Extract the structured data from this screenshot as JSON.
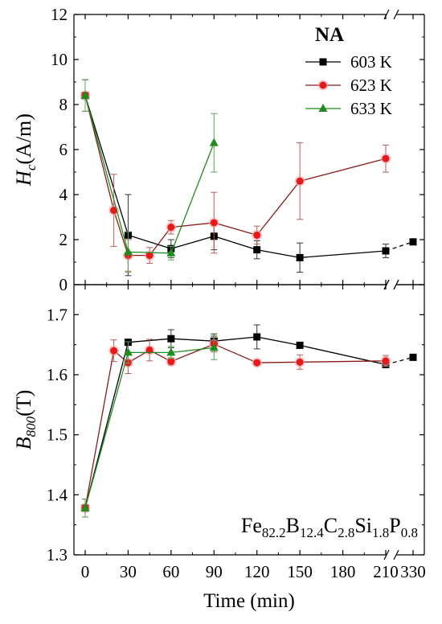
{
  "chart_data": [
    {
      "type": "line",
      "panel": "top",
      "ylabel": "Hc(A/m)",
      "ylabel_parts": {
        "main": "H",
        "sub": "c",
        "rest": "(A/m)"
      },
      "ylim": [
        0,
        12
      ],
      "yticks": [
        0,
        2,
        4,
        6,
        8,
        10,
        12
      ],
      "xticks": [
        "0",
        "30",
        "60",
        "90",
        "120",
        "150",
        "180",
        "210",
        "330"
      ],
      "x_break": "between 210 and 330",
      "legend_title": "NA",
      "legend_position": "top-right",
      "series": [
        {
          "name": "603 K",
          "color": "#000000",
          "marker": "square",
          "x": [
            0,
            30,
            60,
            90,
            120,
            150,
            210,
            330
          ],
          "y": [
            8.4,
            2.2,
            1.6,
            2.15,
            1.55,
            1.2,
            1.5,
            1.9
          ],
          "err": [
            0.7,
            1.8,
            0.4,
            0.6,
            0.4,
            0.65,
            0.3,
            0
          ]
        },
        {
          "name": "623 K",
          "color": "#e8191b",
          "line_color": "#8b1a1a",
          "marker": "circle",
          "x": [
            0,
            20,
            30,
            45,
            60,
            90,
            120,
            150,
            210
          ],
          "y": [
            8.4,
            3.3,
            1.3,
            1.3,
            2.55,
            2.75,
            2.2,
            4.6,
            5.6
          ],
          "err": [
            0.7,
            1.6,
            0.7,
            0.35,
            0.3,
            1.35,
            0.4,
            1.7,
            0.6
          ]
        },
        {
          "name": "633 K",
          "color": "#1e8c1e",
          "marker": "triangle",
          "x": [
            0,
            30,
            60,
            90
          ],
          "y": [
            8.4,
            1.45,
            1.4,
            6.3
          ],
          "err": [
            0.7,
            0.9,
            0.3,
            1.3
          ]
        }
      ]
    },
    {
      "type": "line",
      "panel": "bottom",
      "xlabel": "Time (min)",
      "ylabel": "B800(T)",
      "ylabel_parts": {
        "main": "B",
        "sub": "800",
        "rest": "(T)"
      },
      "ylim": [
        1.3,
        1.75
      ],
      "yticks": [
        1.3,
        1.4,
        1.5,
        1.6,
        1.7
      ],
      "xticks": [
        "0",
        "30",
        "60",
        "90",
        "120",
        "150",
        "180",
        "210",
        "330"
      ],
      "annotation": {
        "parts": [
          {
            "t": "Fe",
            "sub": false
          },
          {
            "t": "82.2",
            "sub": true
          },
          {
            "t": "B",
            "sub": false
          },
          {
            "t": "12.4",
            "sub": true
          },
          {
            "t": "C",
            "sub": false
          },
          {
            "t": "2.8",
            "sub": true
          },
          {
            "t": "Si",
            "sub": false
          },
          {
            "t": "1.8",
            "sub": true
          },
          {
            "t": "P",
            "sub": false
          },
          {
            "t": "0.8",
            "sub": true
          }
        ]
      },
      "series": [
        {
          "name": "603 K",
          "color": "#000000",
          "marker": "square",
          "x": [
            0,
            30,
            60,
            90,
            120,
            150,
            210,
            330
          ],
          "y": [
            1.378,
            1.654,
            1.66,
            1.656,
            1.663,
            1.649,
            1.617,
            1.629
          ],
          "err": [
            0.015,
            0.004,
            0.015,
            0.012,
            0.02,
            0.003,
            0.004,
            0
          ]
        },
        {
          "name": "623 K",
          "color": "#e8191b",
          "line_color": "#8b1a1a",
          "marker": "circle",
          "x": [
            0,
            20,
            30,
            45,
            60,
            90,
            120,
            150,
            210
          ],
          "y": [
            1.378,
            1.64,
            1.62,
            1.641,
            1.622,
            1.651,
            1.62,
            1.621,
            1.623
          ],
          "err": [
            0.015,
            0.018,
            0.018,
            0.018,
            0.006,
            0.013,
            0.003,
            0.012,
            0.009
          ]
        },
        {
          "name": "633 K",
          "color": "#1e8c1e",
          "marker": "triangle",
          "x": [
            0,
            30,
            60,
            90
          ],
          "y": [
            1.378,
            1.637,
            1.637,
            1.645
          ],
          "err": [
            0.015,
            0.018,
            0.01,
            0.02
          ]
        }
      ]
    }
  ]
}
